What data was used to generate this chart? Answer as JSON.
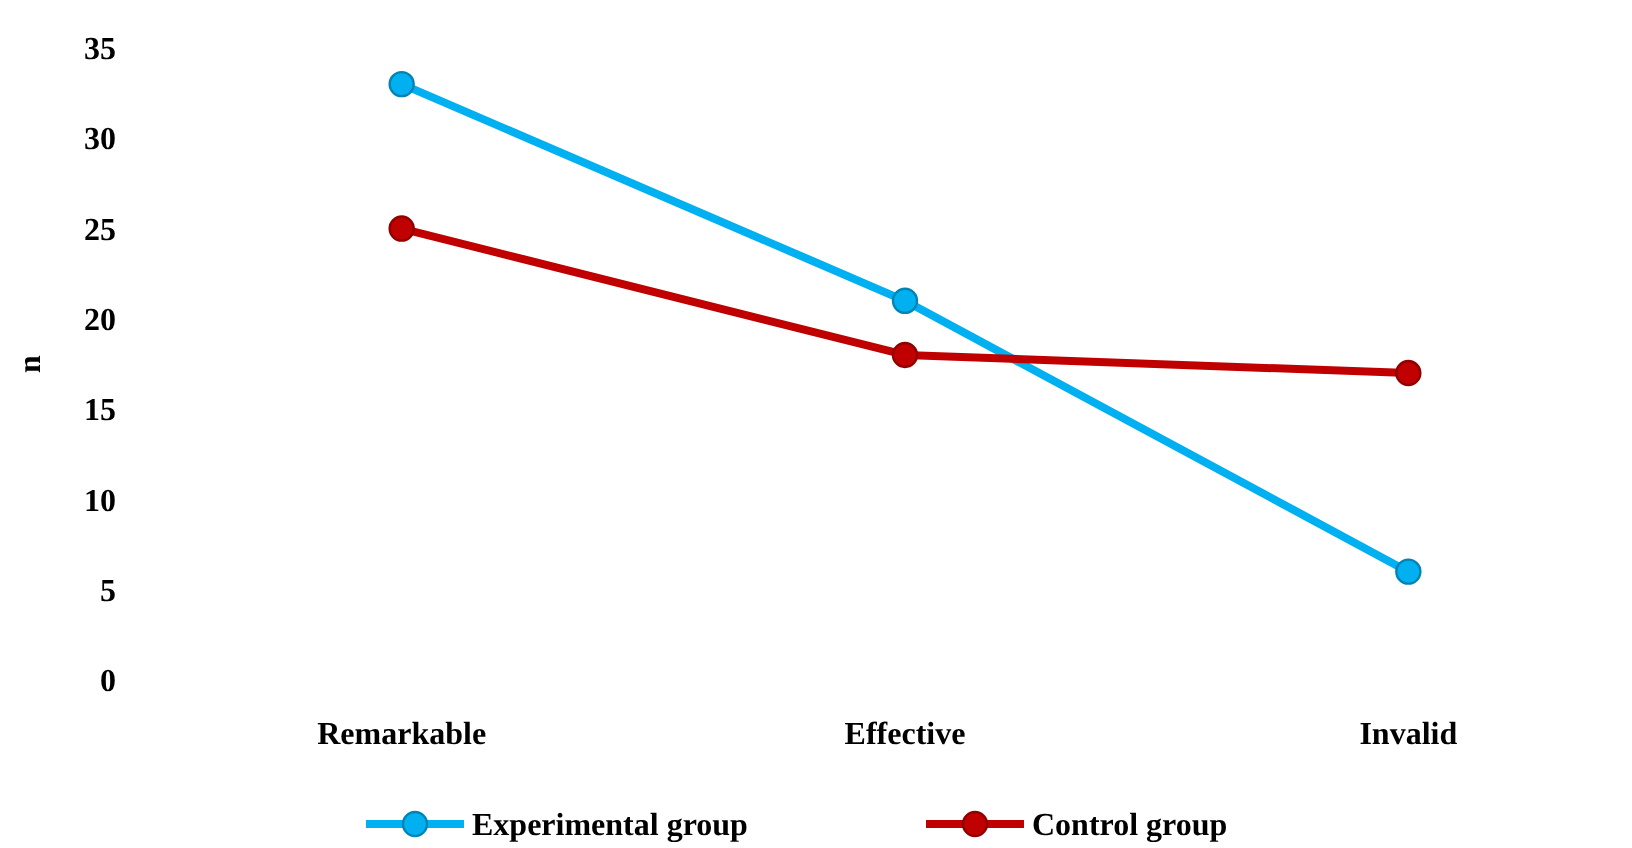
{
  "chart_data": {
    "type": "line",
    "ylabel": "n",
    "categories": [
      "Remarkable",
      "Effective",
      "Invalid"
    ],
    "series": [
      {
        "name": "Experimental group",
        "color": "#00b0f0",
        "values": [
          33,
          21,
          6
        ]
      },
      {
        "name": "Control group",
        "color": "#c00000",
        "values": [
          25,
          18,
          17
        ]
      }
    ],
    "ylim": [
      0,
      35
    ],
    "yticks": [
      0,
      5,
      10,
      15,
      20,
      25,
      30,
      35
    ],
    "grid": false,
    "legend": "bottom",
    "marker": "circle",
    "line_style": "solid"
  }
}
